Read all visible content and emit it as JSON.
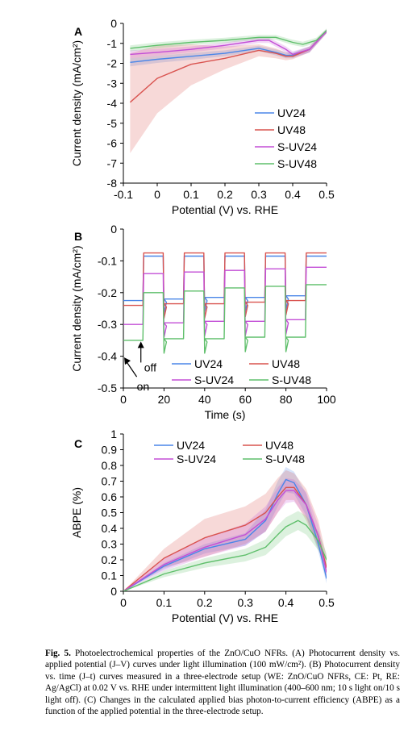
{
  "chart_data": [
    {
      "type": "line",
      "panel": "A",
      "xlabel": "Potential (V) vs. RHE",
      "ylabel": "Current density (mA/cm²)",
      "xlim": [
        -0.1,
        0.5
      ],
      "ylim": [
        -8,
        0
      ],
      "xticks": [
        "-0.1",
        "0",
        "0.1",
        "0.2",
        "0.3",
        "0.4",
        "0.5"
      ],
      "yticks": [
        "0",
        "-1",
        "-2",
        "-3",
        "-4",
        "-5",
        "-6",
        "-7",
        "-8"
      ],
      "legend_position": "bottom-right",
      "series": [
        {
          "name": "UV24",
          "color": "#4a86e8",
          "x": [
            -0.08,
            0,
            0.1,
            0.2,
            0.3,
            0.35,
            0.38,
            0.4,
            0.45,
            0.5
          ],
          "y": [
            -1.95,
            -1.8,
            -1.65,
            -1.5,
            -1.25,
            -1.45,
            -1.6,
            -1.6,
            -1.3,
            -0.4
          ],
          "band_lower": [
            -2.15,
            -1.98,
            -1.82,
            -1.65,
            -1.38,
            -1.6,
            -1.75,
            -1.75,
            -1.45,
            -0.5
          ],
          "band_upper": [
            -1.75,
            -1.62,
            -1.48,
            -1.35,
            -1.12,
            -1.3,
            -1.45,
            -1.45,
            -1.15,
            -0.3
          ]
        },
        {
          "name": "UV48",
          "color": "#d9534f",
          "x": [
            -0.08,
            0,
            0.1,
            0.2,
            0.3,
            0.35,
            0.38,
            0.4,
            0.45,
            0.5
          ],
          "y": [
            -3.95,
            -2.75,
            -2.05,
            -1.75,
            -1.35,
            -1.5,
            -1.65,
            -1.65,
            -1.3,
            -0.4
          ],
          "band_lower": [
            -6.5,
            -4.5,
            -3.1,
            -2.3,
            -1.65,
            -1.75,
            -1.85,
            -1.8,
            -1.45,
            -0.5
          ],
          "band_upper": [
            -1.5,
            -1.1,
            -1.05,
            -1.15,
            -1.05,
            -1.25,
            -1.45,
            -1.5,
            -1.15,
            -0.3
          ]
        },
        {
          "name": "S-UV24",
          "color": "#c34ed6",
          "x": [
            -0.08,
            0,
            0.1,
            0.2,
            0.3,
            0.33,
            0.38,
            0.4,
            0.45,
            0.5
          ],
          "y": [
            -1.55,
            -1.45,
            -1.3,
            -1.1,
            -0.85,
            -0.85,
            -1.3,
            -1.55,
            -1.3,
            -0.4
          ],
          "band_lower": [
            -1.75,
            -1.62,
            -1.45,
            -1.25,
            -0.98,
            -0.98,
            -1.45,
            -1.7,
            -1.45,
            -0.5
          ],
          "band_upper": [
            -1.35,
            -1.28,
            -1.15,
            -0.95,
            -0.72,
            -0.72,
            -1.15,
            -1.4,
            -1.15,
            -0.3
          ]
        },
        {
          "name": "S-UV48",
          "color": "#5fbf6b",
          "x": [
            -0.08,
            0,
            0.1,
            0.2,
            0.3,
            0.35,
            0.4,
            0.43,
            0.47,
            0.5
          ],
          "y": [
            -1.25,
            -1.1,
            -0.95,
            -0.85,
            -0.7,
            -0.7,
            -0.95,
            -1.05,
            -0.85,
            -0.35
          ],
          "band_lower": [
            -1.4,
            -1.25,
            -1.08,
            -0.98,
            -0.82,
            -0.82,
            -1.08,
            -1.18,
            -0.98,
            -0.45
          ],
          "band_upper": [
            -1.1,
            -0.95,
            -0.82,
            -0.72,
            -0.58,
            -0.58,
            -0.82,
            -0.92,
            -0.72,
            -0.25
          ]
        }
      ]
    },
    {
      "type": "line",
      "panel": "B",
      "xlabel": "Time (s)",
      "ylabel": "Current density (mA/cm²)",
      "xlim": [
        0,
        100
      ],
      "ylim": [
        -0.5,
        0
      ],
      "xticks": [
        "0",
        "20",
        "40",
        "60",
        "80",
        "100"
      ],
      "yticks": [
        "0",
        "-0.1",
        "-0.2",
        "-0.3",
        "-0.4",
        "-0.5"
      ],
      "legend_position": "bottom-right",
      "light_cycle": {
        "on_s": 10,
        "off_s": 10
      },
      "annotations": [
        {
          "text": "off",
          "x": 11,
          "y": -0.43
        },
        {
          "text": "on",
          "x": 5,
          "y": -0.48
        }
      ],
      "series": [
        {
          "name": "UV24",
          "color": "#4a86e8",
          "x": [
            0,
            10,
            20,
            30,
            40,
            50,
            60,
            70,
            80,
            90,
            100
          ],
          "y": [
            -0.225,
            -0.085,
            -0.22,
            -0.085,
            -0.215,
            -0.085,
            -0.215,
            -0.085,
            -0.21,
            -0.085,
            -0.085
          ]
        },
        {
          "name": "UV48",
          "color": "#d9534f",
          "x": [
            0,
            10,
            20,
            30,
            40,
            50,
            60,
            70,
            80,
            90,
            100
          ],
          "y": [
            -0.24,
            -0.075,
            -0.235,
            -0.075,
            -0.235,
            -0.075,
            -0.23,
            -0.075,
            -0.225,
            -0.075,
            -0.075
          ]
        },
        {
          "name": "S-UV24",
          "color": "#c34ed6",
          "x": [
            0,
            10,
            20,
            30,
            40,
            50,
            60,
            70,
            80,
            90,
            100
          ],
          "y": [
            -0.3,
            -0.14,
            -0.295,
            -0.135,
            -0.29,
            -0.13,
            -0.29,
            -0.125,
            -0.285,
            -0.12,
            -0.12
          ]
        },
        {
          "name": "S-UV48",
          "color": "#5fbf6b",
          "x": [
            0,
            10,
            20,
            30,
            40,
            50,
            60,
            70,
            80,
            90,
            100
          ],
          "y": [
            -0.35,
            -0.2,
            -0.345,
            -0.195,
            -0.345,
            -0.185,
            -0.34,
            -0.18,
            -0.34,
            -0.175,
            -0.175
          ]
        }
      ]
    },
    {
      "type": "line",
      "panel": "C",
      "xlabel": "Potential (V) vs. RHE",
      "ylabel": "ABPE (%)",
      "xlim": [
        0,
        0.5
      ],
      "ylim": [
        0,
        1
      ],
      "xticks": [
        "0",
        "0.1",
        "0.2",
        "0.3",
        "0.4",
        "0.5"
      ],
      "yticks": [
        "0",
        "0.1",
        "0.2",
        "0.3",
        "0.4",
        "0.5",
        "0.6",
        "0.7",
        "0.8",
        "0.9",
        "1"
      ],
      "legend_position": "top",
      "series": [
        {
          "name": "UV24",
          "color": "#4a86e8",
          "x": [
            0,
            0.1,
            0.2,
            0.3,
            0.35,
            0.38,
            0.4,
            0.42,
            0.45,
            0.48,
            0.5
          ],
          "y": [
            0,
            0.16,
            0.27,
            0.33,
            0.45,
            0.62,
            0.71,
            0.69,
            0.55,
            0.3,
            0.08
          ],
          "band_lower": [
            0,
            0.14,
            0.24,
            0.29,
            0.38,
            0.54,
            0.63,
            0.62,
            0.48,
            0.25,
            0.05
          ],
          "band_upper": [
            0,
            0.18,
            0.3,
            0.37,
            0.52,
            0.7,
            0.79,
            0.76,
            0.62,
            0.35,
            0.11
          ]
        },
        {
          "name": "UV48",
          "color": "#d9534f",
          "x": [
            0,
            0.1,
            0.2,
            0.3,
            0.35,
            0.38,
            0.4,
            0.42,
            0.45,
            0.48,
            0.5
          ],
          "y": [
            0,
            0.21,
            0.34,
            0.42,
            0.5,
            0.6,
            0.66,
            0.66,
            0.55,
            0.35,
            0.15
          ],
          "band_lower": [
            0,
            0.15,
            0.22,
            0.3,
            0.38,
            0.5,
            0.58,
            0.58,
            0.45,
            0.27,
            0.1
          ],
          "band_upper": [
            0,
            0.27,
            0.46,
            0.54,
            0.62,
            0.72,
            0.77,
            0.75,
            0.65,
            0.45,
            0.22
          ]
        },
        {
          "name": "S-UV24",
          "color": "#c34ed6",
          "x": [
            0,
            0.1,
            0.2,
            0.3,
            0.35,
            0.38,
            0.4,
            0.42,
            0.45,
            0.48,
            0.5
          ],
          "y": [
            0,
            0.17,
            0.28,
            0.36,
            0.46,
            0.58,
            0.64,
            0.64,
            0.55,
            0.35,
            0.12
          ],
          "band_lower": [
            0,
            0.13,
            0.22,
            0.29,
            0.38,
            0.5,
            0.56,
            0.57,
            0.47,
            0.28,
            0.08
          ],
          "band_upper": [
            0,
            0.21,
            0.34,
            0.43,
            0.54,
            0.66,
            0.72,
            0.71,
            0.63,
            0.42,
            0.16
          ]
        },
        {
          "name": "S-UV48",
          "color": "#5fbf6b",
          "x": [
            0,
            0.1,
            0.2,
            0.3,
            0.35,
            0.38,
            0.4,
            0.43,
            0.45,
            0.48,
            0.5
          ],
          "y": [
            0,
            0.11,
            0.18,
            0.23,
            0.28,
            0.36,
            0.41,
            0.45,
            0.42,
            0.32,
            0.2
          ],
          "band_lower": [
            0,
            0.09,
            0.15,
            0.19,
            0.23,
            0.3,
            0.35,
            0.39,
            0.36,
            0.26,
            0.16
          ],
          "band_upper": [
            0,
            0.13,
            0.21,
            0.27,
            0.33,
            0.42,
            0.47,
            0.51,
            0.48,
            0.38,
            0.24
          ]
        }
      ]
    }
  ],
  "caption": {
    "label": "Fig. 5.",
    "text": "Photoelectrochemical properties of the ZnO/CuO NFRs. (A) Photocurrent density vs. applied potential (J–V) curves under light illumination (100 mW/cm²). (B) Photocurrent density vs. time (J–t) curves measured in a three-electrode setup (WE: ZnO/CuO NFRs, CE: Pt, RE: Ag/AgCl) at 0.02 V vs. RHE under intermittent light illumination (400–600 nm; 10 s light on/10 s light off). (C) Changes in the calculated applied bias photon-to-current efficiency (ABPE) as a function of the applied potential in the three-electrode setup."
  }
}
